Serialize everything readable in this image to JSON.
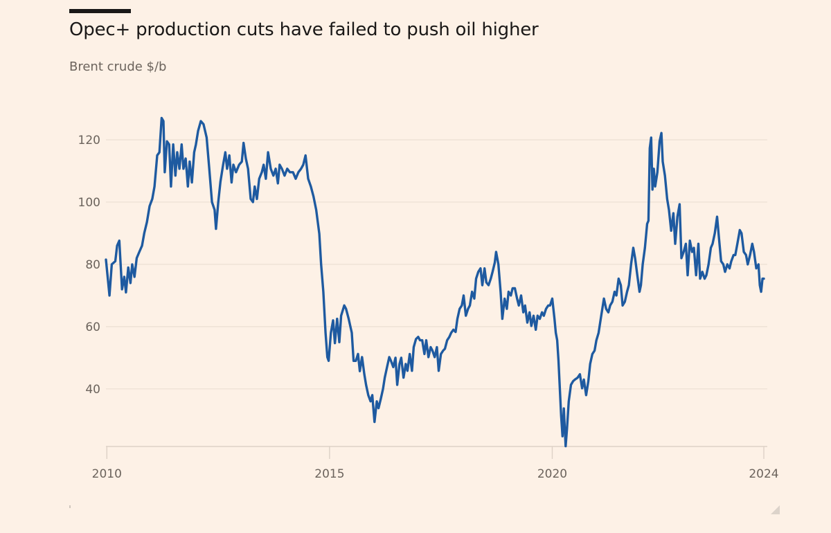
{
  "header": {
    "title": "Opec+ production cuts have failed to push oil higher",
    "subtitle": "Brent crude $/b"
  },
  "colors": {
    "background": "#fdf1e6",
    "line": "#1e5aa0",
    "grid": "#ecdfd3",
    "axis": "#ddd1c6",
    "label": "#6b635c"
  },
  "chart_data": {
    "type": "line",
    "title": "Opec+ production cuts have failed to push oil higher",
    "subtitle": "Brent crude $/b",
    "xlabel": "",
    "ylabel": "Brent crude $/b",
    "xlim": [
      2009.98,
      2024.75
    ],
    "ylim": [
      21.5,
      128
    ],
    "grid": true,
    "legend": "none",
    "y_ticks": [
      40,
      60,
      80,
      100,
      120
    ],
    "x_ticks": [
      {
        "label": "2010",
        "value": 2010.0
      },
      {
        "label": "2015",
        "value": 2015.0
      },
      {
        "label": "2020",
        "value": 2020.0
      },
      {
        "label": "2024",
        "value": 2024.75
      }
    ],
    "series": [
      {
        "name": "Brent crude",
        "x": [
          2009.98,
          2010.06,
          2010.11,
          2010.19,
          2010.23,
          2010.28,
          2010.34,
          2010.39,
          2010.43,
          2010.48,
          2010.53,
          2010.57,
          2010.62,
          2010.67,
          2010.73,
          2010.79,
          2010.84,
          2010.9,
          2010.96,
          2011.02,
          2011.07,
          2011.13,
          2011.18,
          2011.23,
          2011.27,
          2011.3,
          2011.35,
          2011.4,
          2011.44,
          2011.49,
          2011.54,
          2011.58,
          2011.63,
          2011.68,
          2011.72,
          2011.77,
          2011.82,
          2011.86,
          2011.91,
          2011.96,
          2012.0,
          2012.05,
          2012.11,
          2012.17,
          2012.24,
          2012.3,
          2012.36,
          2012.42,
          2012.45,
          2012.5,
          2012.55,
          2012.61,
          2012.66,
          2012.7,
          2012.75,
          2012.8,
          2012.84,
          2012.9,
          2012.97,
          2013.03,
          2013.07,
          2013.12,
          2013.17,
          2013.23,
          2013.28,
          2013.32,
          2013.37,
          2013.42,
          2013.48,
          2013.52,
          2013.57,
          2013.62,
          2013.68,
          2013.74,
          2013.79,
          2013.84,
          2013.88,
          2013.93,
          2013.99,
          2014.05,
          2014.11,
          2014.18,
          2014.24,
          2014.3,
          2014.36,
          2014.41,
          2014.46,
          2014.52,
          2014.58,
          2014.64,
          2014.7,
          2014.77,
          2014.81,
          2014.86,
          2014.91,
          2014.95,
          2014.98,
          2015.03,
          2015.08,
          2015.12,
          2015.17,
          2015.22,
          2015.26,
          2015.33,
          2015.37,
          2015.43,
          2015.5,
          2015.54,
          2015.59,
          2015.64,
          2015.68,
          2015.73,
          2015.78,
          2015.82,
          2015.87,
          2015.92,
          2015.96,
          2016.01,
          2016.06,
          2016.1,
          2016.15,
          2016.2,
          2016.24,
          2016.29,
          2016.34,
          2016.38,
          2016.43,
          2016.48,
          2016.52,
          2016.57,
          2016.61,
          2016.66,
          2016.71,
          2016.75,
          2016.8,
          2016.85,
          2016.89,
          2016.94,
          2016.99,
          2017.03,
          2017.08,
          2017.13,
          2017.17,
          2017.22,
          2017.27,
          2017.31,
          2017.36,
          2017.41,
          2017.45,
          2017.5,
          2017.55,
          2017.59,
          2017.64,
          2017.69,
          2017.73,
          2017.78,
          2017.83,
          2017.87,
          2017.92,
          2017.97,
          2018.01,
          2018.06,
          2018.11,
          2018.15,
          2018.2,
          2018.25,
          2018.29,
          2018.34,
          2018.39,
          2018.43,
          2018.48,
          2018.52,
          2018.57,
          2018.62,
          2018.66,
          2018.71,
          2018.74,
          2018.79,
          2018.84,
          2018.88,
          2018.93,
          2018.98,
          2019.02,
          2019.07,
          2019.11,
          2019.16,
          2019.21,
          2019.25,
          2019.3,
          2019.35,
          2019.39,
          2019.44,
          2019.49,
          2019.53,
          2019.58,
          2019.63,
          2019.67,
          2019.72,
          2019.77,
          2019.81,
          2019.86,
          2019.91,
          2019.95,
          2020.0,
          2020.05,
          2020.08,
          2020.11,
          2020.14,
          2020.17,
          2020.2,
          2020.23,
          2020.26,
          2020.3,
          2020.33,
          2020.37,
          2020.42,
          2020.47,
          2020.51,
          2020.57,
          2020.62,
          2020.67,
          2020.71,
          2020.76,
          2020.81,
          2020.85,
          2020.9,
          2020.95,
          2020.99,
          2021.04,
          2021.1,
          2021.16,
          2021.21,
          2021.26,
          2021.3,
          2021.35,
          2021.4,
          2021.44,
          2021.49,
          2021.54,
          2021.58,
          2021.63,
          2021.68,
          2021.72,
          2021.77,
          2021.82,
          2021.86,
          2021.91,
          2021.96,
          2021.99,
          2022.03,
          2022.08,
          2022.13,
          2022.16,
          2022.19,
          2022.22,
          2022.25,
          2022.28,
          2022.31,
          2022.36,
          2022.41,
          2022.45,
          2022.48,
          2022.53,
          2022.58,
          2022.62,
          2022.67,
          2022.72,
          2022.76,
          2022.81,
          2022.86,
          2022.9,
          2022.95,
          2023.0,
          2023.04,
          2023.09,
          2023.14,
          2023.18,
          2023.23,
          2023.28,
          2023.32,
          2023.37,
          2023.42,
          2023.46,
          2023.51,
          2023.56,
          2023.6,
          2023.65,
          2023.7,
          2023.74,
          2023.79,
          2023.84,
          2023.88,
          2023.93,
          2023.98,
          2024.02,
          2024.07,
          2024.11,
          2024.16,
          2024.21,
          2024.25,
          2024.3,
          2024.35,
          2024.39,
          2024.44,
          2024.49,
          2024.53,
          2024.58,
          2024.63,
          2024.66,
          2024.69,
          2024.72,
          2024.75
        ],
        "values": [
          81.5,
          70,
          80,
          81,
          86,
          87.6,
          72,
          76,
          71,
          79,
          74,
          80,
          76,
          82,
          84,
          86,
          90,
          93.6,
          98.7,
          101,
          105,
          115,
          116,
          127,
          126,
          109.6,
          119.5,
          118.5,
          105,
          118.5,
          108.5,
          116,
          110.7,
          118.5,
          110.7,
          114,
          105,
          113,
          106.3,
          116,
          118.5,
          122.9,
          126,
          125,
          120.7,
          110.7,
          100,
          97.5,
          91.4,
          99.8,
          106.5,
          112,
          116,
          110.7,
          115,
          106.3,
          112,
          109.6,
          112,
          113,
          119,
          114,
          110.7,
          101,
          100,
          105,
          101,
          107.5,
          109.6,
          112,
          107.5,
          116,
          110.7,
          108.5,
          110.7,
          106,
          112,
          110.7,
          108.5,
          110.7,
          109.6,
          109.6,
          107.5,
          109.6,
          110.7,
          112,
          115,
          107.5,
          105,
          101.8,
          97.5,
          89.8,
          80,
          71.2,
          58,
          50.2,
          49,
          58,
          62,
          54.7,
          62.5,
          55,
          63.5,
          66.8,
          65.7,
          62.5,
          58,
          49,
          49,
          51.2,
          45.7,
          50.2,
          44.7,
          41.3,
          38,
          36,
          38,
          29.4,
          36,
          33.8,
          36.8,
          40,
          43.6,
          47,
          50.2,
          49,
          47,
          50,
          41.3,
          48,
          50,
          43.6,
          48,
          45.8,
          51.2,
          45.8,
          53.4,
          56,
          56.7,
          55.6,
          55.6,
          51.2,
          55.6,
          50.2,
          53.4,
          52.3,
          50.2,
          53.4,
          45.8,
          51.2,
          52.3,
          52.9,
          55.6,
          56.7,
          58,
          59,
          58.3,
          62.5,
          65.7,
          66.8,
          70,
          63.5,
          65.7,
          66.8,
          71.2,
          69,
          75.4,
          77.6,
          78.7,
          73.3,
          78.7,
          74.2,
          73.3,
          75.4,
          77.6,
          80.6,
          84,
          80,
          71.2,
          62.5,
          69,
          65.7,
          71.2,
          70,
          72.3,
          72.3,
          69,
          66.8,
          70,
          64.6,
          66.8,
          61.3,
          64.6,
          60.2,
          63.5,
          59,
          63.5,
          62.5,
          64.6,
          63.5,
          65.7,
          66.8,
          66.8,
          69,
          62.5,
          58,
          55.6,
          49,
          40.2,
          31.4,
          24.8,
          33.7,
          21.6,
          27,
          36,
          41.3,
          42.5,
          43,
          43.6,
          44.7,
          40.2,
          43,
          38,
          42.5,
          48,
          51.2,
          52.3,
          55.6,
          58,
          63.5,
          69,
          65.7,
          64.6,
          66.8,
          68,
          71.2,
          70,
          75.4,
          73.3,
          66.8,
          68,
          71.2,
          73.3,
          80,
          85.3,
          82,
          76.5,
          71.2,
          73.3,
          80,
          85.3,
          93,
          94,
          117.3,
          120.7,
          104,
          110.7,
          105,
          109.6,
          119.5,
          122.2,
          113,
          108.5,
          101,
          97.5,
          90.8,
          96.4,
          86.6,
          95.3,
          99.3,
          82,
          84,
          86.6,
          76.5,
          87.6,
          84,
          85.3,
          76.5,
          86.6,
          75.4,
          77.6,
          75.4,
          76.5,
          80,
          85.3,
          86.6,
          90,
          95.3,
          89,
          81,
          80,
          77.6,
          80,
          78.7,
          81,
          83,
          83,
          87,
          91,
          90,
          84,
          83,
          80,
          83,
          86.6,
          84,
          78.7,
          80,
          73.3,
          71.2,
          75.4,
          75.4
        ]
      }
    ]
  }
}
